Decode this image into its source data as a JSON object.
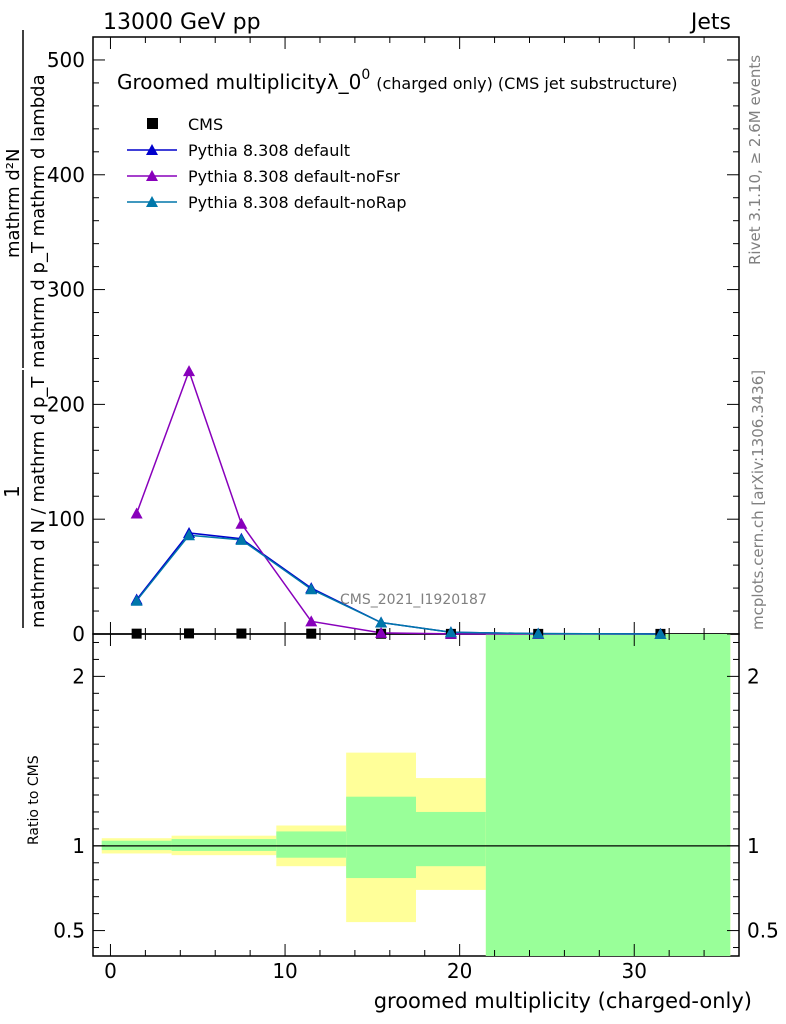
{
  "header": {
    "left": "13000 GeV pp",
    "right": "Jets"
  },
  "title": {
    "main": "Groomed multiplicityλ_0",
    "sup": "0",
    "sub": "(charged only) (CMS jet substructure)"
  },
  "side_text": {
    "rivet": "Rivet 3.1.10, ≥ 2.6M events",
    "mcplots": "mcplots.cern.ch [arXiv:1306.3436]"
  },
  "watermark": "CMS_2021_I1920187",
  "ylabel_main": {
    "num": "mathrm d²N",
    "den": "mathrm d p_T mathrm d lambda",
    "pre_num": "1",
    "pre_den": "mathrm d N / mathrm d p_T"
  },
  "ylabel_ratio": "Ratio to CMS",
  "xlabel": "groomed multiplicity (charged-only)",
  "colors": {
    "cms": "#000000",
    "default": "#0000cc",
    "noFsr": "#8800bb",
    "noRap": "#0077aa",
    "band_inner": "#99ff99",
    "band_outer": "#ffff99"
  },
  "chart_data": [
    {
      "type": "line",
      "title": "Groomed multiplicityλ_0⁰ (charged only) (CMS jet substructure)",
      "xlabel": "groomed multiplicity (charged-only)",
      "ylabel": "1 / (mathrm d N / mathrm d p_T) · mathrm d²N / (mathrm d p_T mathrm d lambda)",
      "xlim": [
        -1,
        36
      ],
      "ylim": [
        0,
        520
      ],
      "yticks": [
        0,
        100,
        200,
        300,
        400,
        500
      ],
      "xticks": [
        0,
        10,
        20,
        30
      ],
      "legend_position": "top-left",
      "series": [
        {
          "name": "CMS",
          "marker": "square",
          "x": [
            1.5,
            4.5,
            7.5,
            11.5,
            15.5,
            19.5,
            24.5,
            31.5
          ],
          "y": [
            0.3,
            0.5,
            0.4,
            0.3,
            0.2,
            0.1,
            0.1,
            0.1
          ]
        },
        {
          "name": "Pythia 8.308 default",
          "marker": "triangle",
          "x": [
            1.5,
            4.5,
            7.5,
            11.5,
            15.5,
            19.5,
            24.5,
            31.5
          ],
          "y": [
            30,
            88,
            83,
            40,
            10,
            1.5,
            0.3,
            0.05
          ]
        },
        {
          "name": "Pythia 8.308 default-noFsr",
          "marker": "triangle",
          "x": [
            1.5,
            4.5,
            7.5,
            11.5,
            15.5,
            19.5,
            24.5,
            31.5
          ],
          "y": [
            105,
            229,
            96,
            11,
            1,
            0.1,
            0.0,
            0.0
          ]
        },
        {
          "name": "Pythia 8.308 default-noRap",
          "marker": "triangle",
          "x": [
            1.5,
            4.5,
            7.5,
            11.5,
            15.5,
            19.5,
            24.5,
            31.5
          ],
          "y": [
            29,
            86,
            82,
            39,
            10,
            1.5,
            0.3,
            0.05
          ]
        }
      ]
    },
    {
      "type": "area",
      "ylabel": "Ratio to CMS",
      "xlim": [
        -1,
        36
      ],
      "ylim": [
        0.35,
        2.25
      ],
      "yticks": [
        0.5,
        1,
        2
      ],
      "reference_line": 1,
      "bins": [
        {
          "x0": -0.5,
          "x1": 3.5,
          "inner": [
            0.975,
            1.03
          ],
          "outer": [
            0.955,
            1.045
          ]
        },
        {
          "x0": 3.5,
          "x1": 9.5,
          "inner": [
            0.97,
            1.04
          ],
          "outer": [
            0.945,
            1.06
          ]
        },
        {
          "x0": 9.5,
          "x1": 13.5,
          "inner": [
            0.93,
            1.085
          ],
          "outer": [
            0.88,
            1.12
          ]
        },
        {
          "x0": 13.5,
          "x1": 17.5,
          "inner": [
            0.81,
            1.29
          ],
          "outer": [
            0.55,
            1.55
          ]
        },
        {
          "x0": 17.5,
          "x1": 21.5,
          "inner": [
            0.88,
            1.2
          ],
          "outer": [
            0.74,
            1.4
          ]
        },
        {
          "x0": 21.5,
          "x1": 35.5,
          "inner": [
            0.35,
            2.25
          ],
          "outer": [
            0.35,
            2.25
          ]
        }
      ]
    }
  ]
}
